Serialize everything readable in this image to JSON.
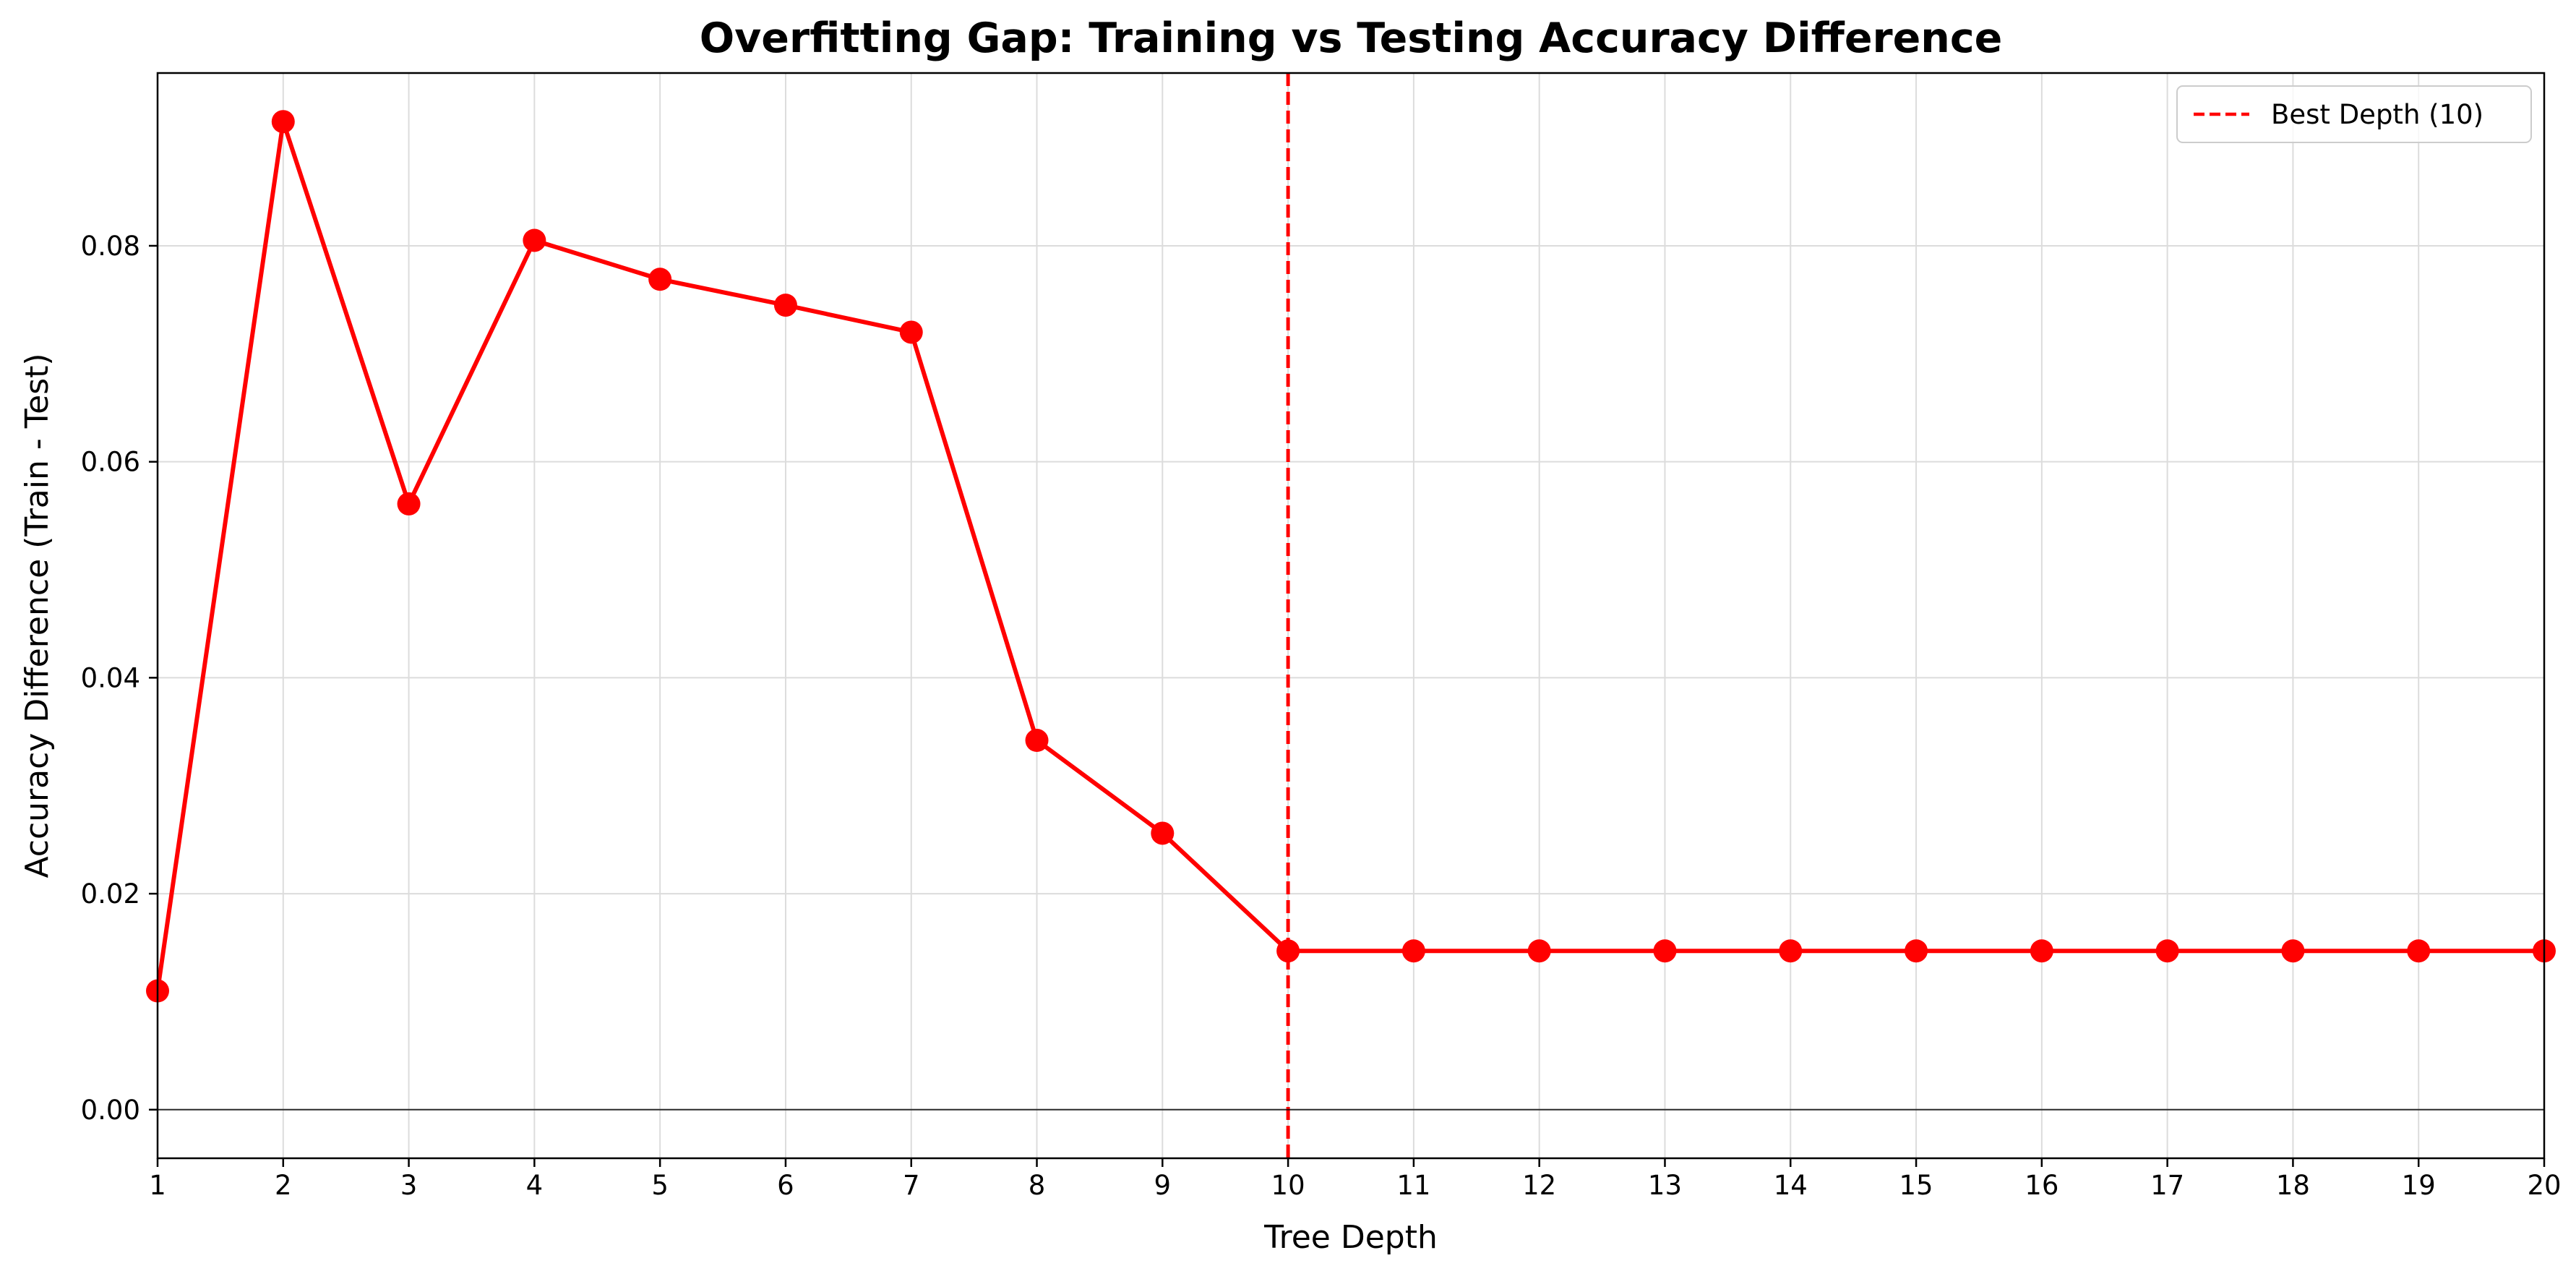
{
  "chart_data": {
    "type": "line",
    "title": "Overfitting Gap: Training vs Testing Accuracy Difference",
    "xlabel": "Tree Depth",
    "ylabel": "Accuracy Difference (Train - Test)",
    "x": [
      1,
      2,
      3,
      4,
      5,
      6,
      7,
      8,
      9,
      10,
      11,
      12,
      13,
      14,
      15,
      16,
      17,
      18,
      19,
      20
    ],
    "series": [
      {
        "values": [
          0.011,
          0.0915,
          0.0561,
          0.0805,
          0.0769,
          0.0745,
          0.072,
          0.0342,
          0.0256,
          0.0147,
          0.0147,
          0.0147,
          0.0147,
          0.0147,
          0.0147,
          0.0147,
          0.0147,
          0.0147,
          0.0147,
          0.0147
        ],
        "color": "#ff0000"
      }
    ],
    "xlim": [
      1,
      20
    ],
    "ylim": [
      -0.0045,
      0.096
    ],
    "xticks": [
      "1",
      "2",
      "3",
      "4",
      "5",
      "6",
      "7",
      "8",
      "9",
      "10",
      "11",
      "12",
      "13",
      "14",
      "15",
      "16",
      "17",
      "18",
      "19",
      "20"
    ],
    "yticks": [
      0.0,
      0.02,
      0.04,
      0.06,
      0.08
    ],
    "ytick_labels": [
      "0.00",
      "0.02",
      "0.04",
      "0.06",
      "0.08"
    ],
    "reference_lines": [
      {
        "orientation": "vertical",
        "x": 10,
        "style": "dashed",
        "color": "#ff0000",
        "label": "Best Depth (10)"
      },
      {
        "orientation": "horizontal",
        "y": 0,
        "style": "solid",
        "color": "#000000"
      }
    ],
    "legend": {
      "position": "top-right",
      "entries": [
        "Best Depth (10)"
      ]
    },
    "grid": true
  }
}
